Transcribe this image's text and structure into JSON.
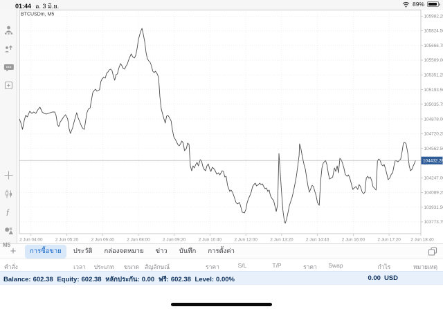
{
  "status_bar": {
    "time": "01:44",
    "date": "อ. 3 มิ.ย.",
    "battery_pct": "89%"
  },
  "chart": {
    "symbol_label": "BTCUSDm, M5"
  },
  "sidebar": {
    "icons": [
      "trade-accounts",
      "new-order",
      "chat",
      "new-chart",
      "crosshair",
      "candlestick-style",
      "indicators",
      "objects"
    ],
    "timeframe_label": "M5"
  },
  "colors": {
    "price_tag": "#2d5c97",
    "accent_blue": "#1668c9",
    "tab_pill_bg": "#d9e8f9",
    "balance_bg": "#e8f1fb",
    "balance_text": "#0b2e59",
    "series": "#4a4a4a"
  },
  "tabs": {
    "items": [
      {
        "label": "การซื้อขาย",
        "active": true
      },
      {
        "label": "ประวัติ",
        "active": false
      },
      {
        "label": "กล่องจดหมาย",
        "active": false
      },
      {
        "label": "ข่าว",
        "active": false
      },
      {
        "label": "บันทึก",
        "active": false
      },
      {
        "label": "การตั้งค่า",
        "active": false
      }
    ]
  },
  "table": {
    "headers": [
      "คำสั่ง",
      "เวลา",
      "ประเภท",
      "ขนาด",
      "สัญลักษณ์",
      "ราคา",
      "S/L",
      "T/P",
      "ราคา",
      "Swap",
      "กำไร",
      "หมายเหตุ"
    ]
  },
  "account": {
    "balance_label": "Balance:",
    "balance": "602.38",
    "equity_label": "Equity:",
    "equity": "602.38",
    "margin_label": "หลักประกัน:",
    "margin": "0.00",
    "free_label": "ฟรี:",
    "free": "602.38",
    "level_label": "Level:",
    "level": "0.00%",
    "profit": "0.00",
    "currency": "USD"
  },
  "chart_data": {
    "type": "line",
    "title": "BTCUSDm, M5",
    "symbol": "BTCUSDm",
    "timeframe": "M5",
    "grid": "dotted",
    "current_price": 104432.28,
    "x_axis": {
      "unit": "minutes since 2 Jun 00:00",
      "range": [
        214,
        1111
      ],
      "ticks": [
        240,
        320,
        400,
        480,
        560,
        640,
        720,
        800,
        880,
        960,
        1040,
        1120
      ],
      "labels": [
        "2 Jun 04:00",
        "2 Jun 05:20",
        "2 Jun 06:40",
        "2 Jun 08:00",
        "2 Jun 09:20",
        "2 Jun 10:40",
        "2 Jun 12:00",
        "2 Jun 13:20",
        "2 Jun 14:40",
        "2 Jun 16:00",
        "2 Jun 17:20",
        "2 Jun 18:40"
      ]
    },
    "y_axis": {
      "range": [
        103647,
        106051
      ],
      "ticks": [
        105982.25,
        105824.5,
        105666.75,
        105509.0,
        105351.25,
        105193.5,
        105035.75,
        104878.0,
        104720.25,
        104562.5,
        104404.75,
        104247.0,
        104089.25,
        103931.5,
        103773.75
      ]
    },
    "points": [
      [
        214,
        104879
      ],
      [
        217,
        104842
      ],
      [
        221,
        104767
      ],
      [
        225,
        104864
      ],
      [
        228,
        104916
      ],
      [
        232,
        104901
      ],
      [
        237,
        104960
      ],
      [
        242,
        104938
      ],
      [
        246,
        104953
      ],
      [
        251,
        104938
      ],
      [
        255,
        104975
      ],
      [
        260,
        105005
      ],
      [
        265,
        104953
      ],
      [
        269,
        104938
      ],
      [
        274,
        104931
      ],
      [
        279,
        104938
      ],
      [
        283,
        104945
      ],
      [
        288,
        104953
      ],
      [
        293,
        104953
      ],
      [
        296,
        104916
      ],
      [
        299,
        104819
      ],
      [
        302,
        104797
      ],
      [
        305,
        104842
      ],
      [
        310,
        104879
      ],
      [
        313,
        104901
      ],
      [
        317,
        104923
      ],
      [
        322,
        104879
      ],
      [
        325,
        104775
      ],
      [
        328,
        104723
      ],
      [
        333,
        104782
      ],
      [
        336,
        104842
      ],
      [
        339,
        104894
      ],
      [
        342,
        104945
      ],
      [
        345,
        104894
      ],
      [
        350,
        104834
      ],
      [
        353,
        104797
      ],
      [
        356,
        104775
      ],
      [
        359,
        104767
      ],
      [
        362,
        104857
      ],
      [
        365,
        104945
      ],
      [
        368,
        104983
      ],
      [
        372,
        104997
      ],
      [
        375,
        105079
      ],
      [
        378,
        105161
      ],
      [
        381,
        105183
      ],
      [
        384,
        105198
      ],
      [
        387,
        105176
      ],
      [
        390,
        105183
      ],
      [
        393,
        105190
      ],
      [
        396,
        105279
      ],
      [
        399,
        105309
      ],
      [
        402,
        105324
      ],
      [
        406,
        105317
      ],
      [
        409,
        105369
      ],
      [
        412,
        105383
      ],
      [
        415,
        105406
      ],
      [
        418,
        105413
      ],
      [
        421,
        105398
      ],
      [
        424,
        105339
      ],
      [
        427,
        105294
      ],
      [
        430,
        105354
      ],
      [
        433,
        105361
      ],
      [
        436,
        105420
      ],
      [
        440,
        105472
      ],
      [
        443,
        105450
      ],
      [
        446,
        105420
      ],
      [
        449,
        105413
      ],
      [
        452,
        105443
      ],
      [
        455,
        105465
      ],
      [
        458,
        105509
      ],
      [
        461,
        105546
      ],
      [
        464,
        105576
      ],
      [
        467,
        105546
      ],
      [
        471,
        105532
      ],
      [
        474,
        105561
      ],
      [
        477,
        105636
      ],
      [
        480,
        105732
      ],
      [
        483,
        105784
      ],
      [
        486,
        105829
      ],
      [
        488,
        105851
      ],
      [
        491,
        105784
      ],
      [
        494,
        105710
      ],
      [
        497,
        105591
      ],
      [
        500,
        105524
      ],
      [
        503,
        105502
      ],
      [
        506,
        105487
      ],
      [
        509,
        105450
      ],
      [
        512,
        105391
      ],
      [
        515,
        105376
      ],
      [
        518,
        105391
      ],
      [
        522,
        105361
      ],
      [
        525,
        105324
      ],
      [
        528,
        105116
      ],
      [
        531,
        104983
      ],
      [
        534,
        104931
      ],
      [
        537,
        104879
      ],
      [
        540,
        104834
      ],
      [
        543,
        104908
      ],
      [
        546,
        104916
      ],
      [
        549,
        104894
      ],
      [
        553,
        104857
      ],
      [
        556,
        104760
      ],
      [
        559,
        104686
      ],
      [
        562,
        104663
      ],
      [
        565,
        104634
      ],
      [
        568,
        104604
      ],
      [
        571,
        104589
      ],
      [
        574,
        104611
      ],
      [
        577,
        104641
      ],
      [
        580,
        104619
      ],
      [
        583,
        104537
      ],
      [
        587,
        104560
      ],
      [
        590,
        104619
      ],
      [
        593,
        104604
      ],
      [
        596,
        104374
      ],
      [
        599,
        104322
      ],
      [
        602,
        104374
      ],
      [
        605,
        104352
      ],
      [
        608,
        104389
      ],
      [
        611,
        104411
      ],
      [
        614,
        104374
      ],
      [
        618,
        104441
      ],
      [
        621,
        104426
      ],
      [
        624,
        104367
      ],
      [
        627,
        104337
      ],
      [
        630,
        104322
      ],
      [
        633,
        104374
      ],
      [
        636,
        104396
      ],
      [
        639,
        104345
      ],
      [
        642,
        104315
      ],
      [
        645,
        104359
      ],
      [
        650,
        104337
      ],
      [
        655,
        104285
      ],
      [
        659,
        104300
      ],
      [
        662,
        104278
      ],
      [
        667,
        104322
      ],
      [
        670,
        104315
      ],
      [
        673,
        104255
      ],
      [
        676,
        104263
      ],
      [
        679,
        104166
      ],
      [
        684,
        104100
      ],
      [
        687,
        104115
      ],
      [
        690,
        104092
      ],
      [
        693,
        104055
      ],
      [
        698,
        103981
      ],
      [
        701,
        103966
      ],
      [
        706,
        103981
      ],
      [
        709,
        103929
      ],
      [
        712,
        103877
      ],
      [
        717,
        103870
      ],
      [
        720,
        103907
      ],
      [
        723,
        103981
      ],
      [
        726,
        104025
      ],
      [
        729,
        104055
      ],
      [
        732,
        104092
      ],
      [
        735,
        104152
      ],
      [
        738,
        104174
      ],
      [
        741,
        104189
      ],
      [
        744,
        104159
      ],
      [
        748,
        104174
      ],
      [
        751,
        104189
      ],
      [
        754,
        104174
      ],
      [
        757,
        104181
      ],
      [
        760,
        104152
      ],
      [
        763,
        104129
      ],
      [
        766,
        104137
      ],
      [
        769,
        104100
      ],
      [
        772,
        104115
      ],
      [
        775,
        104055
      ],
      [
        778,
        104026
      ],
      [
        782,
        104003
      ],
      [
        785,
        103944
      ],
      [
        788,
        103885
      ],
      [
        791,
        103959
      ],
      [
        794,
        104508
      ],
      [
        797,
        104285
      ],
      [
        800,
        104077
      ],
      [
        803,
        103892
      ],
      [
        806,
        103781
      ],
      [
        808,
        103758
      ],
      [
        811,
        103803
      ],
      [
        814,
        103870
      ],
      [
        817,
        103944
      ],
      [
        820,
        103988
      ],
      [
        823,
        104033
      ],
      [
        826,
        104092
      ],
      [
        829,
        104166
      ],
      [
        833,
        104263
      ],
      [
        836,
        104374
      ],
      [
        839,
        104485
      ],
      [
        840,
        104611
      ],
      [
        843,
        104560
      ],
      [
        846,
        104478
      ],
      [
        850,
        104389
      ],
      [
        853,
        104337
      ],
      [
        856,
        104241
      ],
      [
        859,
        104152
      ],
      [
        862,
        104092
      ],
      [
        865,
        104129
      ],
      [
        868,
        104166
      ],
      [
        871,
        104152
      ],
      [
        874,
        104100
      ],
      [
        877,
        104055
      ],
      [
        880,
        103981
      ],
      [
        884,
        103951
      ],
      [
        887,
        104211
      ],
      [
        890,
        104352
      ],
      [
        893,
        104404
      ],
      [
        898,
        104433
      ],
      [
        901,
        104389
      ],
      [
        904,
        104300
      ],
      [
        907,
        104233
      ],
      [
        910,
        104241
      ],
      [
        914,
        104255
      ],
      [
        918,
        104352
      ],
      [
        921,
        104315
      ],
      [
        924,
        104374
      ],
      [
        927,
        104300
      ],
      [
        930,
        104456
      ],
      [
        933,
        104441
      ],
      [
        936,
        104404
      ],
      [
        939,
        104352
      ],
      [
        942,
        104285
      ],
      [
        946,
        104263
      ],
      [
        949,
        104278
      ],
      [
        952,
        104248
      ],
      [
        955,
        104196
      ],
      [
        959,
        104122
      ],
      [
        962,
        104137
      ],
      [
        966,
        104152
      ],
      [
        970,
        104122
      ],
      [
        973,
        104174
      ],
      [
        976,
        104152
      ],
      [
        980,
        104092
      ],
      [
        983,
        104077
      ],
      [
        986,
        104092
      ],
      [
        989,
        104241
      ],
      [
        992,
        104263
      ],
      [
        995,
        104241
      ],
      [
        998,
        104255
      ],
      [
        1001,
        104218
      ],
      [
        1004,
        104152
      ],
      [
        1007,
        104137
      ],
      [
        1011,
        104115
      ],
      [
        1014,
        104426
      ],
      [
        1017,
        104448
      ],
      [
        1020,
        104433
      ],
      [
        1023,
        104389
      ],
      [
        1026,
        104374
      ],
      [
        1029,
        104389
      ],
      [
        1032,
        104344
      ],
      [
        1035,
        104285
      ],
      [
        1038,
        104226
      ],
      [
        1042,
        104248
      ],
      [
        1045,
        104285
      ],
      [
        1048,
        104300
      ],
      [
        1051,
        104374
      ],
      [
        1054,
        104433
      ],
      [
        1057,
        104426
      ],
      [
        1060,
        104418
      ],
      [
        1063,
        104433
      ],
      [
        1066,
        104448
      ],
      [
        1069,
        104523
      ],
      [
        1072,
        104619
      ],
      [
        1075,
        104626
      ],
      [
        1078,
        104611
      ],
      [
        1082,
        104508
      ],
      [
        1085,
        104374
      ],
      [
        1088,
        104322
      ],
      [
        1091,
        104337
      ],
      [
        1094,
        104374
      ],
      [
        1097,
        104404
      ],
      [
        1099,
        104430
      ]
    ]
  }
}
